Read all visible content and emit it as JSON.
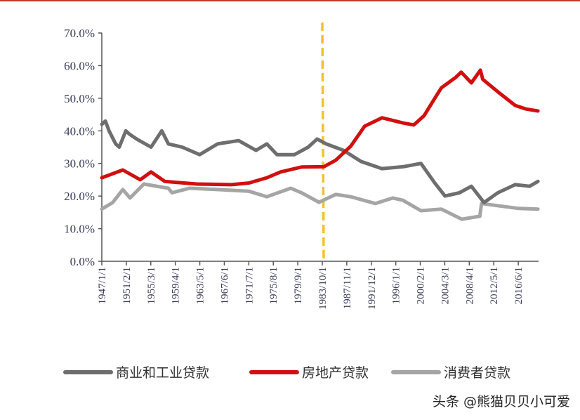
{
  "watermark": "头条 @熊猫贝贝小可爱",
  "chart_data": {
    "type": "line",
    "title": "",
    "xlabel": "",
    "ylabel": "",
    "ylim": [
      0,
      70
    ],
    "yticks": [
      "0.0%",
      "10.0%",
      "20.0%",
      "30.0%",
      "40.0%",
      "50.0%",
      "60.0%",
      "70.0%"
    ],
    "xlim": [
      1947.0,
      2019.8
    ],
    "xticks": [
      "1947/1/1",
      "1951/2/1",
      "1955/3/1",
      "1959/4/1",
      "1963/5/1",
      "1967/6/1",
      "1971/7/1",
      "1975/8/1",
      "1979/9/1",
      "1983/10/1",
      "1987/11/1",
      "1991/12/1",
      "1996/1/1",
      "2000/2/1",
      "2004/3/1",
      "2008/4/1",
      "2012/5/1",
      "2016/6/1"
    ],
    "grid": false,
    "legend_position": "bottom",
    "annotation": {
      "type": "vertical-dashed-line",
      "x": "1983/10/1",
      "color": "#f2c12e"
    },
    "series": [
      {
        "name": "商业和工业贷款",
        "color": "#6e6e6e",
        "points": [
          [
            1947.0,
            42
          ],
          [
            1947.6,
            43
          ],
          [
            1948.2,
            40
          ],
          [
            1949.3,
            36
          ],
          [
            1949.9,
            35
          ],
          [
            1951.0,
            40
          ],
          [
            1951.6,
            39
          ],
          [
            1952.8,
            37.5
          ],
          [
            1955.2,
            35
          ],
          [
            1957.0,
            40
          ],
          [
            1958.1,
            36
          ],
          [
            1960.4,
            35
          ],
          [
            1963.3,
            32.7
          ],
          [
            1966.3,
            36
          ],
          [
            1969.8,
            37
          ],
          [
            1972.7,
            34
          ],
          [
            1974.5,
            36
          ],
          [
            1976.2,
            32.7
          ],
          [
            1979.1,
            32.7
          ],
          [
            1981.4,
            35
          ],
          [
            1982.9,
            37.5
          ],
          [
            1984.4,
            36
          ],
          [
            1987.3,
            34
          ],
          [
            1990.2,
            30.6
          ],
          [
            1993.7,
            28.4
          ],
          [
            1997.2,
            29
          ],
          [
            2000.2,
            30
          ],
          [
            2002.5,
            24
          ],
          [
            2004.2,
            20
          ],
          [
            2006.6,
            21
          ],
          [
            2008.6,
            23
          ],
          [
            2010.7,
            18
          ],
          [
            2013.0,
            21
          ],
          [
            2015.9,
            23.5
          ],
          [
            2018.3,
            23
          ],
          [
            2019.7,
            24.5
          ]
        ]
      },
      {
        "name": "房地产贷款",
        "color": "#d01010",
        "points": [
          [
            1947.0,
            25.6
          ],
          [
            1950.5,
            28
          ],
          [
            1953.4,
            25
          ],
          [
            1955.2,
            27.4
          ],
          [
            1957.5,
            24.5
          ],
          [
            1962.8,
            23.7
          ],
          [
            1968.6,
            23.5
          ],
          [
            1971.5,
            24
          ],
          [
            1974.5,
            25.6
          ],
          [
            1976.8,
            27.4
          ],
          [
            1980.3,
            28.9
          ],
          [
            1984.0,
            29
          ],
          [
            1986.0,
            31
          ],
          [
            1988.5,
            35.3
          ],
          [
            1990.8,
            41.4
          ],
          [
            1993.7,
            44
          ],
          [
            1997.2,
            42.4
          ],
          [
            1999.0,
            41.8
          ],
          [
            2000.7,
            44.6
          ],
          [
            2002.5,
            50
          ],
          [
            2003.6,
            53.2
          ],
          [
            2006.0,
            56.4
          ],
          [
            2006.9,
            58
          ],
          [
            2008.6,
            54.7
          ],
          [
            2010.1,
            58.6
          ],
          [
            2010.5,
            55.8
          ],
          [
            2013.0,
            52
          ],
          [
            2015.9,
            47.8
          ],
          [
            2017.7,
            46.7
          ],
          [
            2019.7,
            46.1
          ]
        ]
      },
      {
        "name": "消费者贷款",
        "color": "#a5a5a5",
        "points": [
          [
            1947.0,
            16
          ],
          [
            1948.8,
            18
          ],
          [
            1950.5,
            22
          ],
          [
            1951.7,
            19.4
          ],
          [
            1954.0,
            23.7
          ],
          [
            1958.1,
            22.4
          ],
          [
            1958.7,
            21
          ],
          [
            1961.6,
            22.4
          ],
          [
            1966.3,
            22
          ],
          [
            1971.5,
            21.5
          ],
          [
            1974.5,
            19.8
          ],
          [
            1978.5,
            22.4
          ],
          [
            1980.3,
            21
          ],
          [
            1983.2,
            18.1
          ],
          [
            1986.0,
            20.5
          ],
          [
            1988.5,
            19.8
          ],
          [
            1992.6,
            17.7
          ],
          [
            1995.5,
            19.4
          ],
          [
            1997.2,
            18.7
          ],
          [
            2000.2,
            15.5
          ],
          [
            2003.6,
            16
          ],
          [
            2007.0,
            12.9
          ],
          [
            2010.0,
            13.8
          ],
          [
            2010.3,
            17.7
          ],
          [
            2016.5,
            16.2
          ],
          [
            2019.7,
            16
          ]
        ]
      }
    ]
  }
}
